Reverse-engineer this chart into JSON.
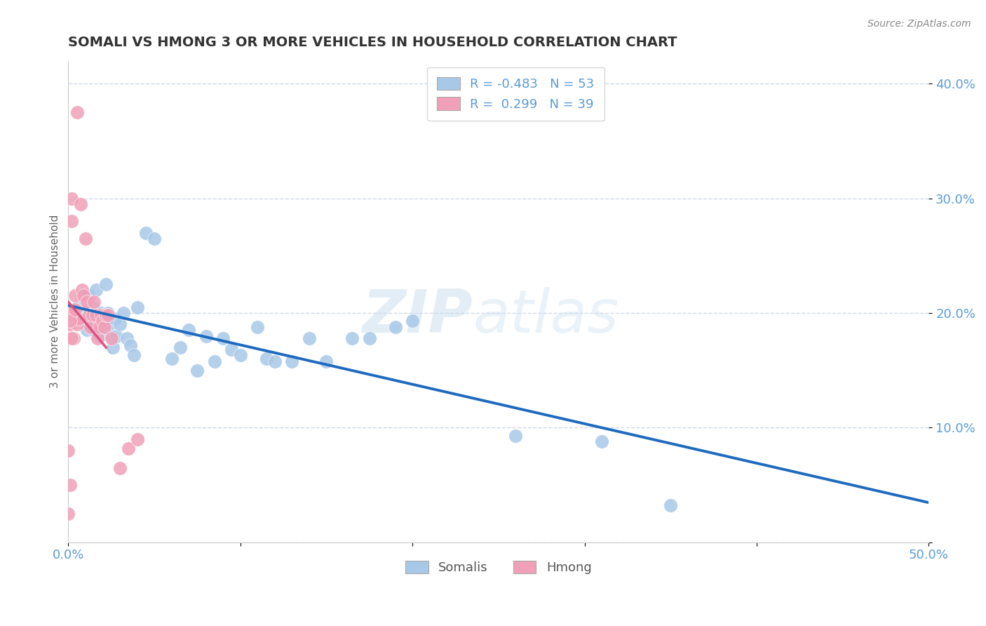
{
  "title": "SOMALI VS HMONG 3 OR MORE VEHICLES IN HOUSEHOLD CORRELATION CHART",
  "ylabel": "3 or more Vehicles in Household",
  "source_text": "Source: ZipAtlas.com",
  "watermark_zip": "ZIP",
  "watermark_atlas": "atlas",
  "xlim": [
    0.0,
    0.5
  ],
  "ylim": [
    0.0,
    0.42
  ],
  "yticks": [
    0.0,
    0.1,
    0.2,
    0.3,
    0.4
  ],
  "xticks": [
    0.0,
    0.1,
    0.2,
    0.3,
    0.4,
    0.5
  ],
  "somali_R": -0.483,
  "somali_N": 53,
  "hmong_R": 0.299,
  "hmong_N": 39,
  "somali_color": "#a8c8e8",
  "hmong_color": "#f0a0b8",
  "somali_line_color": "#1e6abf",
  "hmong_line_color": "#e05080",
  "legend_label_1": "Somalis",
  "legend_label_2": "Hmong",
  "somali_x": [
    0.005,
    0.007,
    0.008,
    0.009,
    0.01,
    0.011,
    0.012,
    0.013,
    0.014,
    0.015,
    0.016,
    0.017,
    0.018,
    0.019,
    0.02,
    0.021,
    0.022,
    0.023,
    0.024,
    0.025,
    0.026,
    0.027,
    0.028,
    0.03,
    0.032,
    0.034,
    0.036,
    0.038,
    0.04,
    0.045,
    0.05,
    0.06,
    0.065,
    0.07,
    0.075,
    0.08,
    0.085,
    0.09,
    0.095,
    0.1,
    0.11,
    0.115,
    0.12,
    0.13,
    0.14,
    0.15,
    0.165,
    0.175,
    0.19,
    0.2,
    0.26,
    0.31,
    0.35
  ],
  "somali_y": [
    0.205,
    0.2,
    0.215,
    0.195,
    0.21,
    0.185,
    0.215,
    0.195,
    0.205,
    0.185,
    0.22,
    0.195,
    0.18,
    0.2,
    0.185,
    0.195,
    0.225,
    0.2,
    0.19,
    0.18,
    0.17,
    0.195,
    0.18,
    0.19,
    0.2,
    0.178,
    0.172,
    0.163,
    0.205,
    0.27,
    0.265,
    0.16,
    0.17,
    0.185,
    0.15,
    0.18,
    0.158,
    0.178,
    0.168,
    0.163,
    0.188,
    0.16,
    0.158,
    0.158,
    0.178,
    0.158,
    0.178,
    0.178,
    0.188,
    0.193,
    0.093,
    0.088,
    0.032
  ],
  "hmong_x": [
    0.001,
    0.001,
    0.002,
    0.002,
    0.003,
    0.003,
    0.004,
    0.004,
    0.005,
    0.006,
    0.007,
    0.008,
    0.009,
    0.01,
    0.011,
    0.012,
    0.013,
    0.014,
    0.015,
    0.016,
    0.017,
    0.018,
    0.019,
    0.02,
    0.021,
    0.022,
    0.003,
    0.001,
    0.002,
    0.004,
    0.005,
    0.023,
    0.025,
    0.03,
    0.035,
    0.04,
    0.0,
    0.001,
    0.0
  ],
  "hmong_y": [
    0.2,
    0.19,
    0.3,
    0.28,
    0.195,
    0.2,
    0.215,
    0.195,
    0.19,
    0.195,
    0.295,
    0.22,
    0.215,
    0.265,
    0.21,
    0.198,
    0.188,
    0.198,
    0.21,
    0.198,
    0.178,
    0.188,
    0.198,
    0.193,
    0.188,
    0.198,
    0.178,
    0.193,
    0.178,
    0.203,
    0.375,
    0.198,
    0.178,
    0.065,
    0.082,
    0.09,
    0.08,
    0.05,
    0.025
  ],
  "title_color": "#333333",
  "axis_color": "#5b9bd5",
  "tick_color": "#5b9bd5",
  "grid_color": "#d0d8e8",
  "background_color": "#ffffff"
}
